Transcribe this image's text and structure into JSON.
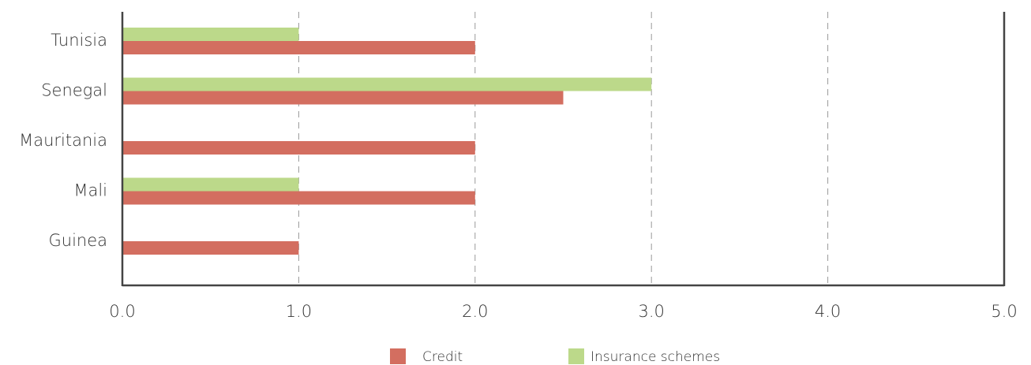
{
  "chart_data": {
    "type": "bar",
    "orientation": "horizontal",
    "categories": [
      "Tunisia",
      "Senegal",
      "Mauritania",
      "Mali",
      "Guinea"
    ],
    "series": [
      {
        "name": "Credit",
        "color": "#d36e60",
        "values": [
          2,
          2.5,
          2,
          2,
          1
        ]
      },
      {
        "name": "Insurance schemes",
        "color": "#bcd98a",
        "values": [
          1,
          3,
          0,
          1,
          0
        ]
      }
    ],
    "xlim": [
      0,
      5
    ],
    "xticks": [
      {
        "value": 0,
        "label": "0.0"
      },
      {
        "value": 1,
        "label": "1.0"
      },
      {
        "value": 2,
        "label": "2.0"
      },
      {
        "value": 3,
        "label": "3.0"
      },
      {
        "value": 4,
        "label": "4.0"
      },
      {
        "value": 5,
        "label": "5.0"
      }
    ],
    "grid": true,
    "legend": "bottom"
  }
}
